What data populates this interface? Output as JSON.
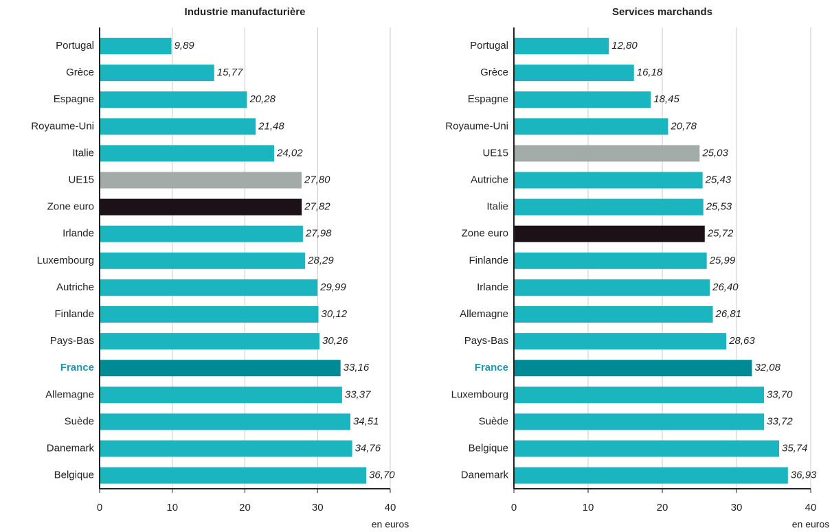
{
  "chart_data": [
    {
      "type": "bar",
      "title": "Industrie manufacturière",
      "xlabel": "en euros",
      "categories": [
        "Portugal",
        "Grèce",
        "Espagne",
        "Royaume-Uni",
        "Italie",
        "UE15",
        "Zone euro",
        "Irlande",
        "Luxembourg",
        "Autriche",
        "Finlande",
        "Pays-Bas",
        "France",
        "Allemagne",
        "Suède",
        "Danemark",
        "Belgique"
      ],
      "values": [
        9.89,
        15.77,
        20.28,
        21.48,
        24.02,
        27.8,
        27.82,
        27.98,
        28.29,
        29.99,
        30.12,
        30.26,
        33.16,
        33.37,
        34.51,
        34.76,
        36.7
      ],
      "value_labels": [
        "9,89",
        "15,77",
        "20,28",
        "21,48",
        "24,02",
        "27,80",
        "27,82",
        "27,98",
        "28,29",
        "29,99",
        "30,12",
        "30,26",
        "33,16",
        "33,37",
        "34,51",
        "34,76",
        "36,70"
      ],
      "colors": [
        "#1ab5be",
        "#1ab5be",
        "#1ab5be",
        "#1ab5be",
        "#1ab5be",
        "#a3aba8",
        "#1b1116",
        "#1ab5be",
        "#1ab5be",
        "#1ab5be",
        "#1ab5be",
        "#1ab5be",
        "#008a96",
        "#1ab5be",
        "#1ab5be",
        "#1ab5be",
        "#1ab5be"
      ],
      "label_colors": [
        null,
        null,
        null,
        null,
        null,
        null,
        null,
        null,
        null,
        null,
        null,
        null,
        "#1a9aab",
        null,
        null,
        null,
        null
      ],
      "xlim": [
        0,
        40
      ],
      "xticks": [
        0,
        10,
        20,
        30,
        40
      ],
      "grid": true
    },
    {
      "type": "bar",
      "title": "Services marchands",
      "xlabel": "en euros",
      "categories": [
        "Portugal",
        "Grèce",
        "Espagne",
        "Royaume-Uni",
        "UE15",
        "Autriche",
        "Italie",
        "Zone euro",
        "Finlande",
        "Irlande",
        "Allemagne",
        "Pays-Bas",
        "France",
        "Luxembourg",
        "Suède",
        "Belgique",
        "Danemark"
      ],
      "values": [
        12.8,
        16.18,
        18.45,
        20.78,
        25.03,
        25.43,
        25.53,
        25.72,
        25.99,
        26.4,
        26.81,
        28.63,
        32.08,
        33.7,
        33.72,
        35.74,
        36.93
      ],
      "value_labels": [
        "12,80",
        "16,18",
        "18,45",
        "20,78",
        "25,03",
        "25,43",
        "25,53",
        "25,72",
        "25,99",
        "26,40",
        "26,81",
        "28,63",
        "32,08",
        "33,70",
        "33,72",
        "35,74",
        "36,93"
      ],
      "colors": [
        "#1ab5be",
        "#1ab5be",
        "#1ab5be",
        "#1ab5be",
        "#a3aba8",
        "#1ab5be",
        "#1ab5be",
        "#1b1116",
        "#1ab5be",
        "#1ab5be",
        "#1ab5be",
        "#1ab5be",
        "#008a96",
        "#1ab5be",
        "#1ab5be",
        "#1ab5be",
        "#1ab5be"
      ],
      "label_colors": [
        null,
        null,
        null,
        null,
        null,
        null,
        null,
        null,
        null,
        null,
        null,
        null,
        "#1a9aab",
        null,
        null,
        null,
        null
      ],
      "xlim": [
        0,
        40
      ],
      "xticks": [
        0,
        10,
        20,
        30,
        40
      ],
      "grid": true
    }
  ]
}
